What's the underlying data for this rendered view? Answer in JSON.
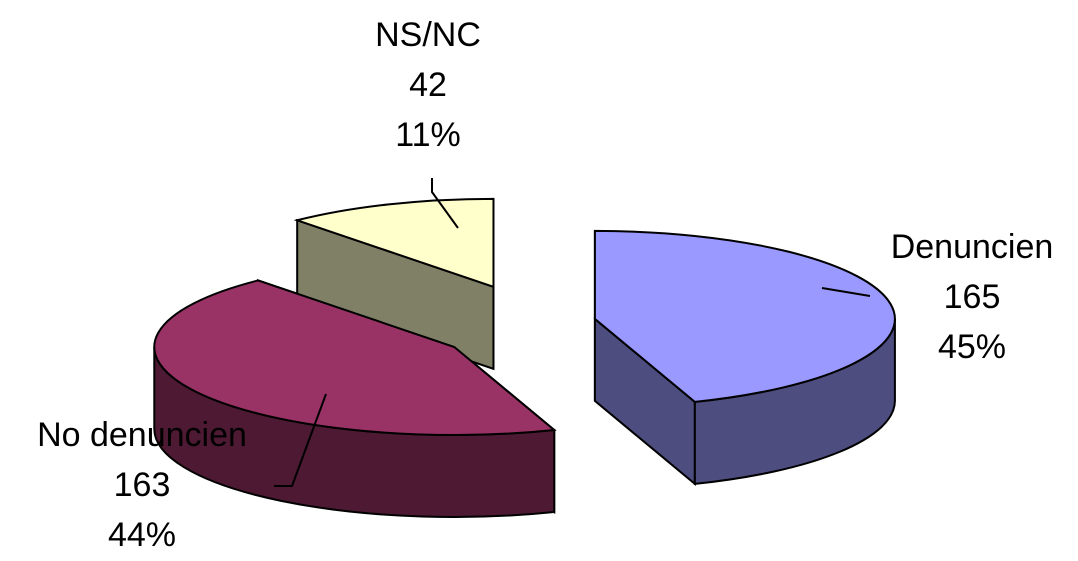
{
  "chart_data": {
    "type": "pie",
    "three_d": true,
    "exploded": true,
    "title": "",
    "categories": [
      "Denuncien",
      "No denuncien",
      "NS/NC"
    ],
    "values": [
      165,
      163,
      42
    ],
    "percents": [
      "45%",
      "44%",
      "11%"
    ],
    "colors": {
      "Denuncien": {
        "top": "#9999ff",
        "side": "#4d4d80"
      },
      "No denuncien": {
        "top": "#993366",
        "side": "#4d1933"
      },
      "NS/NC": {
        "top": "#ffffcc",
        "side": "#808066"
      }
    },
    "legend": "none",
    "data_labels": "category, value and percent with leader lines"
  }
}
